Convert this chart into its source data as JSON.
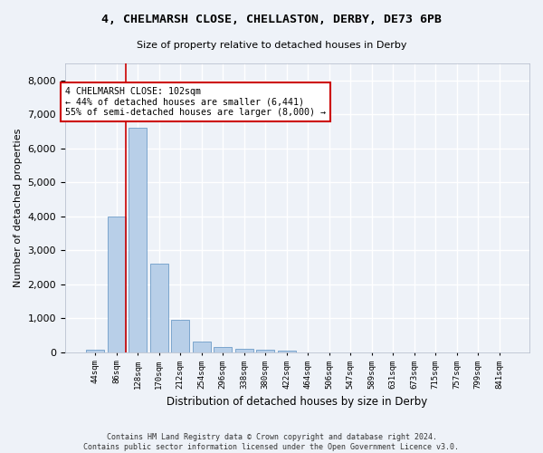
{
  "title": "4, CHELMARSH CLOSE, CHELLASTON, DERBY, DE73 6PB",
  "subtitle": "Size of property relative to detached houses in Derby",
  "xlabel": "Distribution of detached houses by size in Derby",
  "ylabel": "Number of detached properties",
  "bar_values": [
    75,
    4000,
    6600,
    2600,
    950,
    320,
    150,
    100,
    75,
    50,
    0,
    0,
    0,
    0,
    0,
    0,
    0,
    0,
    0,
    0
  ],
  "bar_labels": [
    "44sqm",
    "86sqm",
    "128sqm",
    "170sqm",
    "212sqm",
    "254sqm",
    "296sqm",
    "338sqm",
    "380sqm",
    "422sqm",
    "464sqm",
    "506sqm",
    "547sqm",
    "589sqm",
    "631sqm",
    "673sqm",
    "715sqm",
    "757sqm",
    "799sqm",
    "841sqm"
  ],
  "bar_color": "#b8cfe8",
  "bar_edge_color": "#5a8fc0",
  "vline_color": "#cc0000",
  "ylim_max": 8500,
  "yticks": [
    0,
    1000,
    2000,
    3000,
    4000,
    5000,
    6000,
    7000,
    8000
  ],
  "annotation_text": "4 CHELMARSH CLOSE: 102sqm\n← 44% of detached houses are smaller (6,441)\n55% of semi-detached houses are larger (8,000) →",
  "footer": "Contains HM Land Registry data © Crown copyright and database right 2024.\nContains public sector information licensed under the Open Government Licence v3.0.",
  "bg_color": "#eef2f8",
  "grid_color": "#ffffff"
}
